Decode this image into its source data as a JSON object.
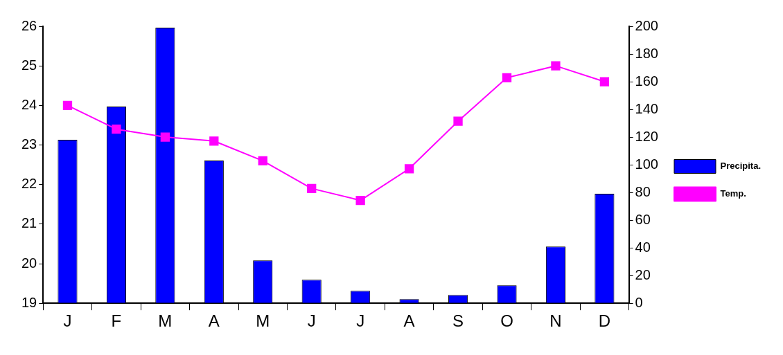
{
  "chart_data": {
    "type": "bar",
    "categories": [
      "J",
      "F",
      "M",
      "A",
      "M",
      "J",
      "J",
      "A",
      "S",
      "O",
      "N",
      "D"
    ],
    "series": [
      {
        "name": "Precipita.",
        "axis": "y2",
        "color": "#0000ff",
        "values": [
          118,
          142,
          199,
          103,
          31,
          17,
          9,
          3,
          6,
          13,
          41,
          79
        ]
      },
      {
        "name": "Temp.",
        "type": "line",
        "axis": "y",
        "color": "#ff00ff",
        "marker": "square",
        "values": [
          24.0,
          23.4,
          23.2,
          23.1,
          22.6,
          21.9,
          21.6,
          22.4,
          23.6,
          24.7,
          25.0,
          24.6
        ]
      }
    ],
    "ylim": [
      19,
      26
    ],
    "yticks": [
      19,
      20,
      21,
      22,
      23,
      24,
      25,
      26
    ],
    "y2lim": [
      0,
      200
    ],
    "y2ticks": [
      0,
      20,
      40,
      60,
      80,
      100,
      120,
      140,
      160,
      180,
      200
    ],
    "legend": "right",
    "grid": false
  }
}
